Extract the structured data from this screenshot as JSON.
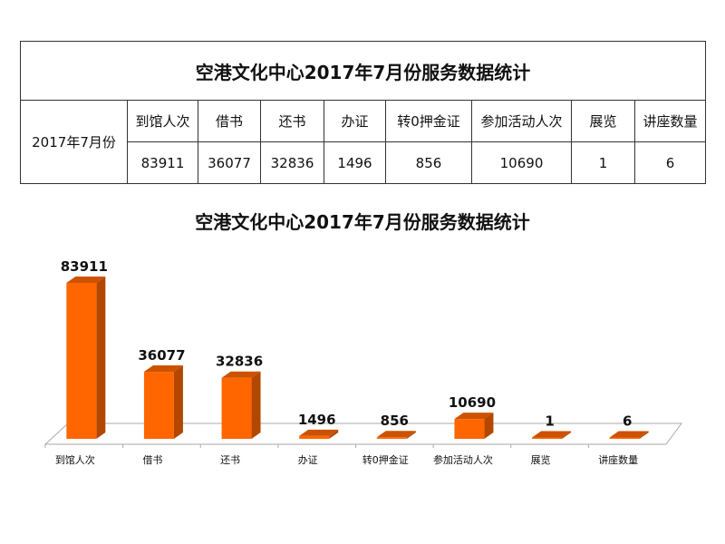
{
  "table": {
    "title": "空港文化中心2017年7月份服务数据统计",
    "row_label": "2017年7月份",
    "headers": [
      "到馆人次",
      "借书",
      "还书",
      "办证",
      "转0押金证",
      "参加活动人次",
      "展览",
      "讲座数量"
    ],
    "values": [
      "83911",
      "36077",
      "32836",
      "1496",
      "856",
      "10690",
      "1",
      "6"
    ]
  },
  "chart_data": {
    "type": "bar",
    "title": "空港文化中心2017年7月份服务数据统计",
    "categories": [
      "到馆人次",
      "借书",
      "还书",
      "办证",
      "转0押金证",
      "参加活动人次",
      "展览",
      "讲座数量"
    ],
    "values": [
      83911,
      36077,
      32836,
      1496,
      856,
      10690,
      1,
      6
    ],
    "data_labels": [
      "83911",
      "36077",
      "32836",
      "1496",
      "856",
      "10690",
      "1",
      "6"
    ],
    "xlabel": "",
    "ylabel": "",
    "ylim": [
      0,
      90000
    ],
    "grid": false,
    "legend": "none",
    "colors": {
      "front": "#ff6600",
      "side": "#b34700",
      "top": "#cc5200"
    }
  }
}
